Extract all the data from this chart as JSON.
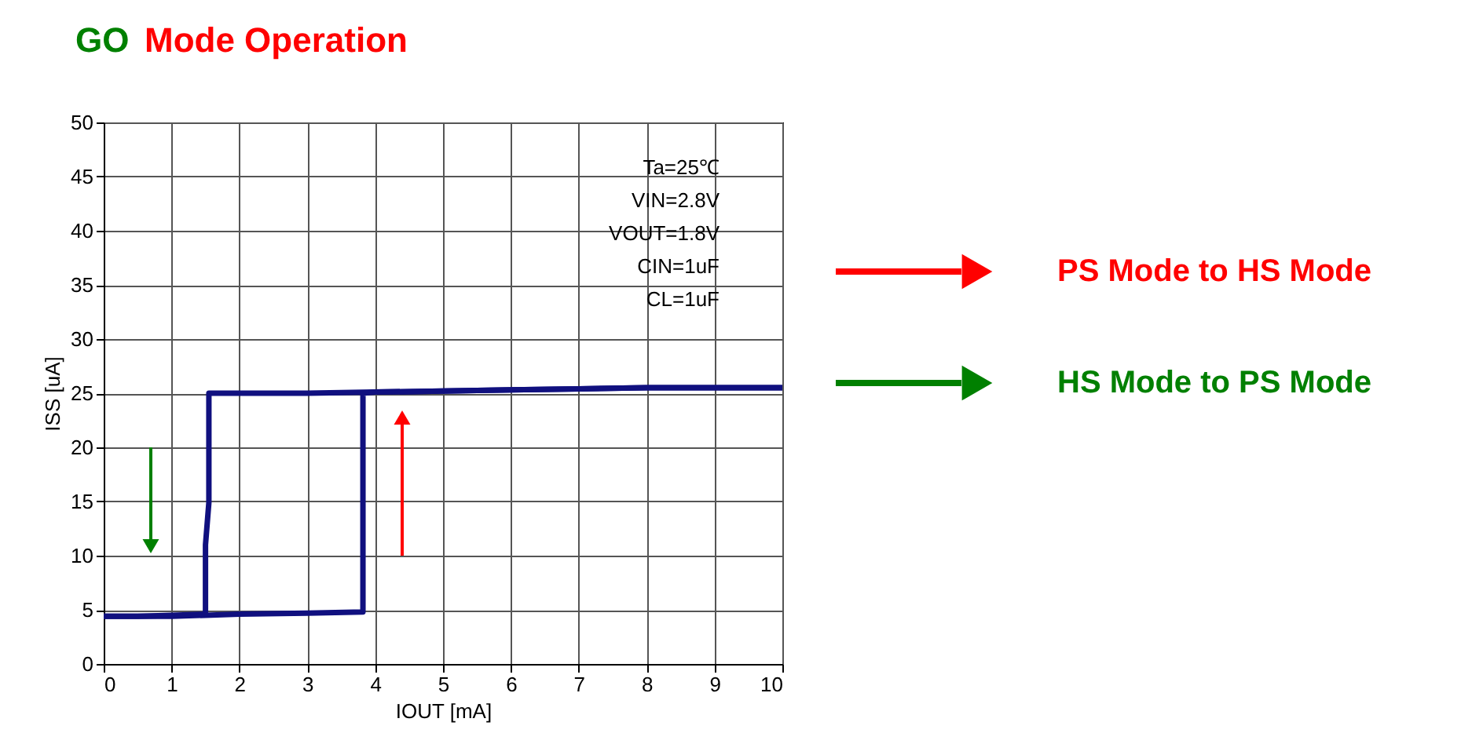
{
  "chart_data": {
    "type": "line",
    "title": "GO Mode Operation",
    "xlabel": "IOUT [mA]",
    "ylabel": "ISS [uA]",
    "series": [
      {
        "color": "#10107f",
        "x": [
          0,
          0.5,
          1,
          1.5,
          2,
          3,
          3.82,
          3.82,
          4,
          5,
          6,
          7,
          8,
          9,
          10
        ],
        "values": [
          4.4,
          4.4,
          4.4,
          4.5,
          4.6,
          4.7,
          4.8,
          25,
          25.1,
          25.2,
          25.3,
          25.4,
          25.5,
          25.5,
          25.5
        ]
      },
      {
        "color": "#10107f",
        "x": [
          10,
          9,
          8,
          7,
          6,
          5,
          4,
          3,
          2,
          1.55,
          1.55,
          1.5,
          1.5,
          1,
          0.5,
          0
        ],
        "values": [
          25.5,
          25.5,
          25.5,
          25.4,
          25.3,
          25.2,
          25.1,
          25,
          25,
          25,
          14.9,
          11,
          4.6,
          4.5,
          4.4,
          4.4
        ]
      }
    ],
    "xlim": [
      0,
      10
    ],
    "xticks": [
      0,
      1,
      2,
      3,
      4,
      5,
      6,
      7,
      8,
      9,
      10
    ],
    "ylim": [
      0,
      50
    ],
    "yticks": [
      0,
      5,
      10,
      15,
      20,
      25,
      30,
      35,
      40,
      45,
      50
    ],
    "grid": true,
    "marker": "none",
    "line_style": "solid",
    "annotations": [
      "Ta=25℃",
      "VIN=2.8V",
      "VOUT=1.8V",
      "CIN=1uF",
      "CL=1uF",
      "PS Mode to HS Mode",
      "HS Mode to PS Mode"
    ]
  }
}
